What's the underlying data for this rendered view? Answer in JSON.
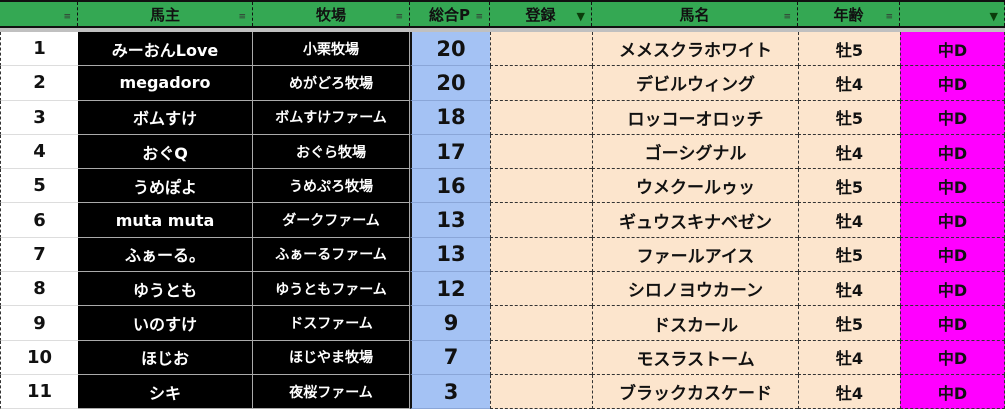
{
  "headers": [
    "",
    "馬主",
    "牧場",
    "総合P",
    "登録",
    "馬名",
    "年齢",
    ""
  ],
  "filters": [
    false,
    false,
    false,
    false,
    true,
    false,
    false,
    true
  ],
  "colors": {
    "header": "#34a853",
    "points": "#a4c2f4",
    "peach": "#fce5cd",
    "distance": "#ff00ff"
  },
  "rows": [
    {
      "rank": "1",
      "owner": "みーおんLove",
      "farm": "小栗牧場",
      "points": "20",
      "reg": "",
      "horse": "メメスクラホワイト",
      "age": "牡5",
      "dist": "中D"
    },
    {
      "rank": "2",
      "owner": "megadoro",
      "farm": "めがどろ牧場",
      "points": "20",
      "reg": "",
      "horse": "デビルウィング",
      "age": "牡4",
      "dist": "中D"
    },
    {
      "rank": "3",
      "owner": "ボムすけ",
      "farm": "ボムすけファーム",
      "points": "18",
      "reg": "",
      "horse": "ロッコーオロッチ",
      "age": "牡5",
      "dist": "中D"
    },
    {
      "rank": "4",
      "owner": "おぐQ",
      "farm": "おぐら牧場",
      "points": "17",
      "reg": "",
      "horse": "ゴーシグナル",
      "age": "牡4",
      "dist": "中D"
    },
    {
      "rank": "5",
      "owner": "うめぽよ",
      "farm": "うめぷろ牧場",
      "points": "16",
      "reg": "",
      "horse": "ウメクールゥッ",
      "age": "牡5",
      "dist": "中D"
    },
    {
      "rank": "6",
      "owner": "muta muta",
      "farm": "ダークファーム",
      "points": "13",
      "reg": "",
      "horse": "ギュウスキナベゼン",
      "age": "牡4",
      "dist": "中D"
    },
    {
      "rank": "7",
      "owner": "ふぁーる。",
      "farm": "ふぁーるファーム",
      "points": "13",
      "reg": "",
      "horse": "ファールアイス",
      "age": "牡5",
      "dist": "中D"
    },
    {
      "rank": "8",
      "owner": "ゆうとも",
      "farm": "ゆうともファーム",
      "points": "12",
      "reg": "",
      "horse": "シロノヨウカーン",
      "age": "牡4",
      "dist": "中D"
    },
    {
      "rank": "9",
      "owner": "いのすけ",
      "farm": "ドスファーム",
      "points": "9",
      "reg": "",
      "horse": "ドスカール",
      "age": "牡5",
      "dist": "中D"
    },
    {
      "rank": "10",
      "owner": "ほじお",
      "farm": "ほじやま牧場",
      "points": "7",
      "reg": "",
      "horse": "モスラストーム",
      "age": "牡4",
      "dist": "中D"
    },
    {
      "rank": "11",
      "owner": "シキ",
      "farm": "夜桜ファーム",
      "points": "3",
      "reg": "",
      "horse": "ブラックカスケード",
      "age": "牡4",
      "dist": "中D"
    }
  ]
}
